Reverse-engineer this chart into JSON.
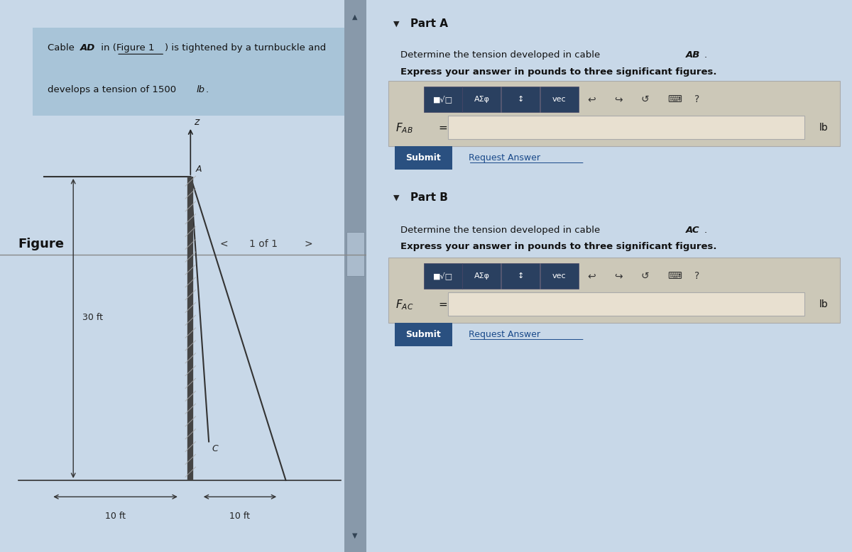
{
  "bg_color": "#c8d8e8",
  "left_panel_bg": "#d0dce8",
  "right_panel_bg": "#c8d4e0",
  "problem_box_bg": "#a8c4d8",
  "figure_label": "Figure",
  "figure_nav": "1 of 1",
  "dim_30ft": "30 ft",
  "dim_10ft_left": "10 ft",
  "dim_10ft_right": "10 ft",
  "label_A": "A",
  "label_C": "C",
  "label_z": "z",
  "part_a_header": "Part A",
  "part_a_desc2": "Express your answer in pounds to three significant figures.",
  "part_a_unit": "lb",
  "part_b_header": "Part B",
  "part_b_desc2": "Express your answer in pounds to three significant figures.",
  "part_b_unit": "lb",
  "submit_bg": "#2a5080",
  "submit_text": "Submit",
  "submit_text_color": "#ffffff",
  "request_answer_text": "Request Answer",
  "request_answer_color": "#1a4a8a",
  "toolbar_bg": "#2a4060",
  "input_bg": "#e8e0d0",
  "divider_color": "#888888"
}
